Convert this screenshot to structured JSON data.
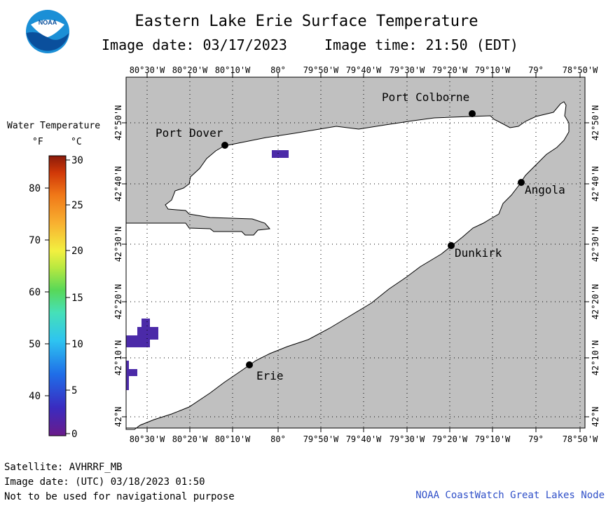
{
  "header": {
    "title": "Eastern Lake Erie Surface Temperature",
    "image_date": "Image date: 03/17/2023",
    "image_time": "Image time: 21:50 (EDT)"
  },
  "logo": {
    "text": "NOAA"
  },
  "legend": {
    "title": "Water Temperature",
    "unit_f": "°F",
    "unit_c": "°C",
    "f_ticks": [
      "80",
      "70",
      "60",
      "50",
      "40"
    ],
    "c_ticks": [
      "30",
      "25",
      "20",
      "15",
      "10",
      "5",
      "0"
    ]
  },
  "map": {
    "lon_labels": [
      "80°30'W",
      "80°20'W",
      "80°10'W",
      "80°",
      "79°50'W",
      "79°40'W",
      "79°30'W",
      "79°20'W",
      "79°10'W",
      "79°",
      "78°50'W"
    ],
    "lat_labels": [
      "42°50'N",
      "42°40'N",
      "42°30'N",
      "42°20'N",
      "42°10'N",
      "42°N"
    ],
    "cities": [
      {
        "name": "Port Colborne"
      },
      {
        "name": "Port Dover"
      },
      {
        "name": "Angola"
      },
      {
        "name": "Dunkirk"
      },
      {
        "name": "Erie"
      }
    ],
    "colors": {
      "land": "#c0c0c0",
      "water": "#ffffff",
      "cold_pixel": "#4b2aa8",
      "grid": "#000000"
    }
  },
  "footer": {
    "satellite": "Satellite: AVHRRF_MB",
    "utc_date": "Image date: (UTC) 03/18/2023  01:50",
    "disclaimer": "Not to be used for navigational purpose",
    "credit": "NOAA CoastWatch Great Lakes Node"
  }
}
